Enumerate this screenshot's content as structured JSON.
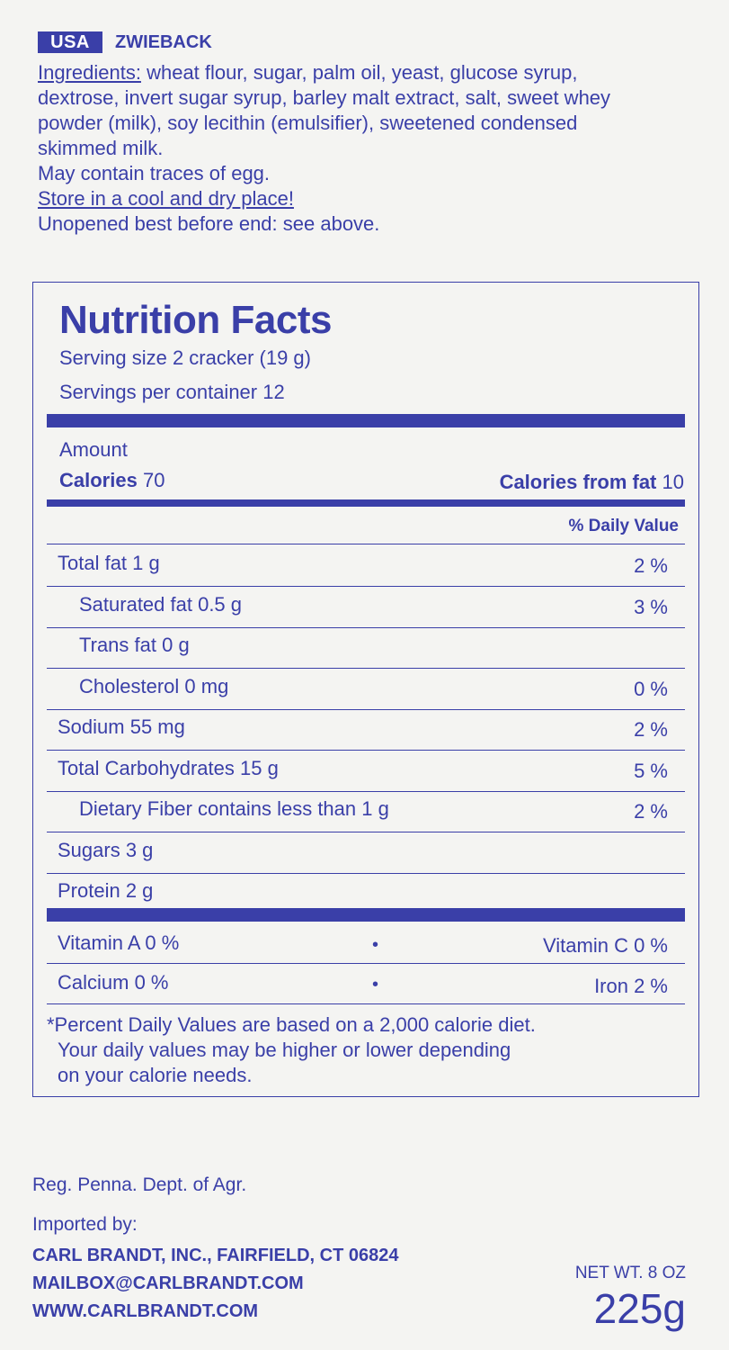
{
  "header": {
    "badge": "USA",
    "product": "ZWIEBACK"
  },
  "ingredients": {
    "label": "Ingredients:",
    "line1_rest": " wheat flour, sugar, palm oil, yeast, glucose syrup,",
    "line2": "dextrose, invert sugar syrup, barley malt extract, salt, sweet whey",
    "line3": "powder (milk), soy lecithin (emulsifier), sweetened condensed",
    "line4": "skimmed milk.",
    "allergen": "May contain traces of egg.",
    "storage": "Store in a cool and dry place!",
    "best_before": "Unopened best before end: see above."
  },
  "nutrition": {
    "title": "Nutrition Facts",
    "serving_size": "Serving size 2 cracker (19 g)",
    "servings_per_container": "Servings per container 12",
    "amount_label": "Amount",
    "calories_label": "Calories",
    "calories_value": "70",
    "calories_fat_label": "Calories from fat",
    "calories_fat_value": "10",
    "dv_header": "% Daily Value",
    "rows": [
      {
        "label": "Total fat 1 g",
        "pct": "2 %"
      },
      {
        "label": "Saturated fat 0.5 g",
        "pct": "3 %"
      },
      {
        "label": "Trans fat 0 g",
        "pct": ""
      },
      {
        "label": "Cholesterol 0 mg",
        "pct": "0 %"
      },
      {
        "label": "Sodium 55 mg",
        "pct": "2 %"
      },
      {
        "label": "Total Carbohydrates 15 g",
        "pct": "5 %"
      },
      {
        "label": "Dietary Fiber contains less than 1 g",
        "pct": "2 %"
      },
      {
        "label": "Sugars 3 g",
        "pct": ""
      },
      {
        "label": "Protein 2 g",
        "pct": ""
      }
    ],
    "vitamins": [
      {
        "left": "Vitamin A  0 %",
        "dot": "•",
        "right": "Vitamin C 0 %"
      },
      {
        "left": "Calcium 0 %",
        "dot": "•",
        "right": "Iron 2 %"
      }
    ],
    "footnote1": "*Percent Daily Values are based on a 2,000 calorie diet.",
    "footnote2": "Your daily values may be higher or lower depending",
    "footnote3": "on your calorie needs."
  },
  "footer": {
    "reg": "Reg. Penna. Dept. of Agr.",
    "imported_by": "Imported by:",
    "company": "CARL BRANDT, INC., FAIRFIELD, CT 06824",
    "email": "MAILBOX@CARLBRANDT.COM",
    "website": "WWW.CARLBRANDT.COM",
    "net_wt": "NET WT. 8 OZ",
    "weight": "225g"
  },
  "colors": {
    "ink": "#3a3fa8",
    "background": "#f4f4f2"
  }
}
